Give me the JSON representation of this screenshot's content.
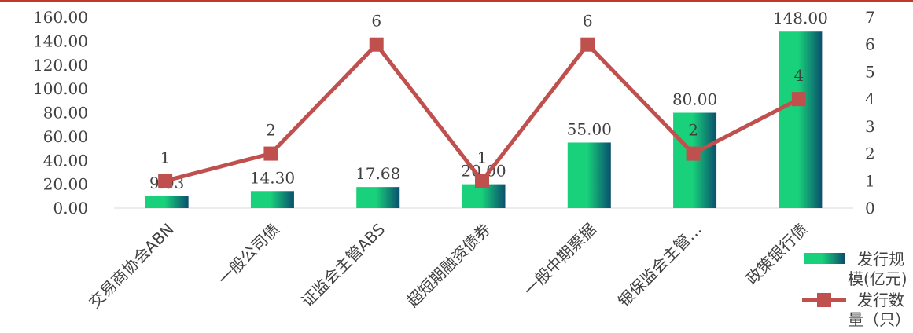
{
  "chart_data": {
    "type": "bar+line",
    "categories": [
      "交易商协会ABN",
      "一般公司债",
      "证监会主管ABS",
      "超短期融资债券",
      "一般中期票据",
      "银保监会主管…",
      "政策银行债"
    ],
    "series": [
      {
        "name": "发行规模(亿元)",
        "type": "bar",
        "axis": "left",
        "values": [
          9.93,
          14.3,
          17.68,
          20.0,
          55.0,
          80.0,
          148.0
        ],
        "labels": [
          "9.93",
          "14.30",
          "17.68",
          "20.00",
          "55.00",
          "80.00",
          "148.00"
        ],
        "color_light": "#19d17a",
        "color_dark": "#0a4f6e"
      },
      {
        "name": "发行数量（只）",
        "type": "line",
        "axis": "right",
        "values": [
          1,
          2,
          6,
          1,
          6,
          2,
          4
        ],
        "labels": [
          "1",
          "2",
          "6",
          "1",
          "6",
          "2",
          "4"
        ],
        "color": "#c0504d"
      }
    ],
    "left_axis": {
      "ylim": [
        0,
        160
      ],
      "ticks": [
        "0.00",
        "20.00",
        "40.00",
        "60.00",
        "80.00",
        "100.00",
        "120.00",
        "140.00",
        "160.00"
      ]
    },
    "right_axis": {
      "ylim": [
        0,
        7
      ],
      "ticks": [
        "0",
        "1",
        "2",
        "3",
        "4",
        "5",
        "6",
        "7"
      ]
    },
    "grid": false,
    "legend": {
      "placement": "bottom-right",
      "bar_label_lines": [
        "发行规",
        "模(亿元)"
      ],
      "line_label_lines": [
        "发行数",
        "量（只）"
      ]
    }
  }
}
